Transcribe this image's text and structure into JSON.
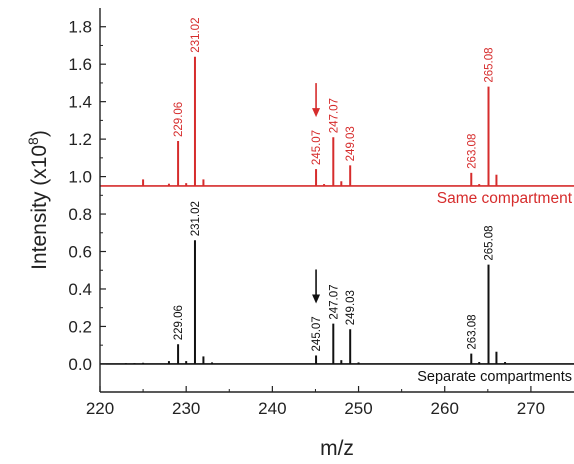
{
  "chart_data": {
    "type": "mass-spectrum",
    "xlabel": "m/z",
    "ylabel": "Intensity (x10",
    "ylabel_exponent": "8",
    "ylabel_close": ")",
    "xlim": [
      220,
      275
    ],
    "ylim": [
      -0.15,
      1.9
    ],
    "x_ticks": [
      {
        "v": 220,
        "label": "220"
      },
      {
        "v": 230,
        "label": "230"
      },
      {
        "v": 240,
        "label": "240"
      },
      {
        "v": 250,
        "label": "250"
      },
      {
        "v": 260,
        "label": "260"
      },
      {
        "v": 270,
        "label": "270"
      }
    ],
    "y_ticks": [
      {
        "v": 0.0,
        "label": "0.0"
      },
      {
        "v": 0.2,
        "label": "0.2"
      },
      {
        "v": 0.4,
        "label": "0.4"
      },
      {
        "v": 0.6,
        "label": "0.6"
      },
      {
        "v": 0.8,
        "label": "0.8"
      },
      {
        "v": 1.0,
        "label": "1.0"
      },
      {
        "v": 1.2,
        "label": "1.2"
      },
      {
        "v": 1.4,
        "label": "1.4"
      },
      {
        "v": 1.6,
        "label": "1.6"
      },
      {
        "v": 1.8,
        "label": "1.8"
      }
    ],
    "series": [
      {
        "name": "Same compartment",
        "color": "#d62c2c",
        "baseline": 0.95,
        "peaks": [
          {
            "x": 225.0,
            "y": 0.985
          },
          {
            "x": 228.0,
            "y": 0.962
          },
          {
            "x": 229.06,
            "y": 1.19,
            "label": "229.06"
          },
          {
            "x": 230.0,
            "y": 0.965
          },
          {
            "x": 231.02,
            "y": 1.64,
            "label": "231.02"
          },
          {
            "x": 232.0,
            "y": 0.985
          },
          {
            "x": 245.07,
            "y": 1.04,
            "label": "245.07"
          },
          {
            "x": 246.0,
            "y": 0.96
          },
          {
            "x": 247.07,
            "y": 1.21,
            "label": "247.07"
          },
          {
            "x": 248.0,
            "y": 0.975
          },
          {
            "x": 249.03,
            "y": 1.06,
            "label": "249.03"
          },
          {
            "x": 263.08,
            "y": 1.02,
            "label": "263.08"
          },
          {
            "x": 264.0,
            "y": 0.96
          },
          {
            "x": 265.08,
            "y": 1.48,
            "label": "265.08"
          },
          {
            "x": 266.0,
            "y": 1.01
          }
        ],
        "arrow_at": 245.07
      },
      {
        "name": "Separate compartments",
        "color": "#111111",
        "baseline": 0.0,
        "peaks": [
          {
            "x": 223.0,
            "y": 0.004
          },
          {
            "x": 224.0,
            "y": 0.004
          },
          {
            "x": 225.0,
            "y": 0.006
          },
          {
            "x": 228.0,
            "y": 0.015
          },
          {
            "x": 229.06,
            "y": 0.105,
            "label": "229.06"
          },
          {
            "x": 230.0,
            "y": 0.015
          },
          {
            "x": 231.02,
            "y": 0.66,
            "label": "231.02"
          },
          {
            "x": 232.0,
            "y": 0.04
          },
          {
            "x": 233.0,
            "y": 0.008
          },
          {
            "x": 245.07,
            "y": 0.045,
            "label": "245.07"
          },
          {
            "x": 247.07,
            "y": 0.215,
            "label": "247.07"
          },
          {
            "x": 248.0,
            "y": 0.02
          },
          {
            "x": 249.03,
            "y": 0.185,
            "label": "249.03"
          },
          {
            "x": 250.0,
            "y": 0.008
          },
          {
            "x": 263.08,
            "y": 0.055,
            "label": "263.08"
          },
          {
            "x": 264.0,
            "y": 0.01
          },
          {
            "x": 265.08,
            "y": 0.53,
            "label": "265.08"
          },
          {
            "x": 266.0,
            "y": 0.065
          },
          {
            "x": 267.0,
            "y": 0.01
          }
        ],
        "arrow_at": 245.07
      }
    ],
    "grid": false
  }
}
